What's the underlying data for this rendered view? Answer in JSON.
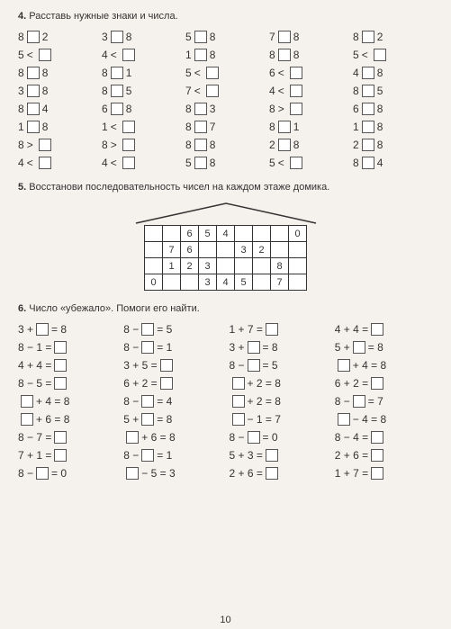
{
  "ex4": {
    "num": "4.",
    "title": "Расставь нужные знаки и числа.",
    "rows": [
      [
        {
          "l": "8",
          "m": "box",
          "r": "2"
        },
        {
          "l": "3",
          "m": "box",
          "r": "8"
        },
        {
          "l": "5",
          "m": "box",
          "r": "8"
        },
        {
          "l": "7",
          "m": "box",
          "r": "8"
        },
        {
          "l": "8",
          "m": "box",
          "r": "2"
        }
      ],
      [
        {
          "l": "5",
          "m": "<",
          "r": "box"
        },
        {
          "l": "4",
          "m": "<",
          "r": "box"
        },
        {
          "l": "1",
          "m": "box",
          "r": "8"
        },
        {
          "l": "8",
          "m": "box",
          "r": "8"
        },
        {
          "l": "5",
          "m": "<",
          "r": "box"
        }
      ],
      [
        {
          "l": "8",
          "m": "box",
          "r": "8"
        },
        {
          "l": "8",
          "m": "box",
          "r": "1"
        },
        {
          "l": "5",
          "m": "<",
          "r": "box"
        },
        {
          "l": "6",
          "m": "<",
          "r": "box"
        },
        {
          "l": "4",
          "m": "box",
          "r": "8"
        }
      ],
      [
        {
          "l": "3",
          "m": "box",
          "r": "8"
        },
        {
          "l": "8",
          "m": "box",
          "r": "5"
        },
        {
          "l": "7",
          "m": "<",
          "r": "box"
        },
        {
          "l": "4",
          "m": "<",
          "r": "box"
        },
        {
          "l": "8",
          "m": "box",
          "r": "5"
        }
      ],
      [
        {
          "l": "8",
          "m": "box",
          "r": "4"
        },
        {
          "l": "6",
          "m": "box",
          "r": "8"
        },
        {
          "l": "8",
          "m": "box",
          "r": "3"
        },
        {
          "l": "8",
          "m": ">",
          "r": "box"
        },
        {
          "l": "6",
          "m": "box",
          "r": "8"
        }
      ],
      [
        {
          "l": "1",
          "m": "box",
          "r": "8"
        },
        {
          "l": "1",
          "m": "<",
          "r": "box"
        },
        {
          "l": "8",
          "m": "box",
          "r": "7"
        },
        {
          "l": "8",
          "m": "box",
          "r": "1"
        },
        {
          "l": "1",
          "m": "box",
          "r": "8"
        }
      ],
      [
        {
          "l": "8",
          "m": ">",
          "r": "box"
        },
        {
          "l": "8",
          "m": ">",
          "r": "box"
        },
        {
          "l": "8",
          "m": "box",
          "r": "8"
        },
        {
          "l": "2",
          "m": "box",
          "r": "8"
        },
        {
          "l": "2",
          "m": "box",
          "r": "8"
        }
      ],
      [
        {
          "l": "4",
          "m": "<",
          "r": "box"
        },
        {
          "l": "4",
          "m": "<",
          "r": "box"
        },
        {
          "l": "5",
          "m": "box",
          "r": "8"
        },
        {
          "l": "5",
          "m": "<",
          "r": "box"
        },
        {
          "l": "8",
          "m": "box",
          "r": "4"
        }
      ]
    ]
  },
  "ex5": {
    "num": "5.",
    "title": "Восстанови последовательность чисел на каждом этаже домика.",
    "table": [
      [
        "",
        "",
        "6",
        "5",
        "4",
        "",
        "",
        "",
        "0"
      ],
      [
        "",
        "7",
        "6",
        "",
        "",
        "3",
        "2",
        "",
        ""
      ],
      [
        "",
        "1",
        "2",
        "3",
        "",
        "",
        "",
        "8",
        ""
      ],
      [
        "0",
        "",
        "",
        "3",
        "4",
        "5",
        "",
        "7",
        ""
      ]
    ]
  },
  "ex6": {
    "num": "6.",
    "title": "Число «убежало». Помоги его найти.",
    "rows": [
      [
        [
          "3 + ",
          "box",
          " = 8"
        ],
        [
          "8 − ",
          "box",
          " = 5"
        ],
        [
          "1 + 7 = ",
          "box",
          ""
        ],
        [
          "4 + 4 = ",
          "box",
          ""
        ]
      ],
      [
        [
          "8 − 1 = ",
          "box",
          ""
        ],
        [
          "8 − ",
          "box",
          " = 1"
        ],
        [
          "3 + ",
          "box",
          " = 8"
        ],
        [
          "5 + ",
          "box",
          " = 8"
        ]
      ],
      [
        [
          "4 + 4 = ",
          "box",
          ""
        ],
        [
          "3 + 5 = ",
          "box",
          ""
        ],
        [
          "8 − ",
          "box",
          " = 5"
        ],
        [
          "",
          "box",
          " + 4 = 8"
        ]
      ],
      [
        [
          "8 − 5 = ",
          "box",
          ""
        ],
        [
          "6 + 2 = ",
          "box",
          ""
        ],
        [
          "",
          "box",
          " + 2 = 8"
        ],
        [
          "6 + 2 = ",
          "box",
          ""
        ]
      ],
      [
        [
          "",
          "box",
          " + 4 = 8"
        ],
        [
          "8 − ",
          "box",
          " = 4"
        ],
        [
          "",
          "box",
          " + 2 = 8"
        ],
        [
          "8 − ",
          "box",
          " = 7"
        ]
      ],
      [
        [
          "",
          "box",
          " + 6 = 8"
        ],
        [
          "5 + ",
          "box",
          " = 8"
        ],
        [
          "",
          "box",
          " − 1 = 7"
        ],
        [
          "",
          "box",
          " − 4 = 8"
        ]
      ],
      [
        [
          "8 − 7 = ",
          "box",
          ""
        ],
        [
          "",
          "box",
          " + 6 = 8"
        ],
        [
          "8 − ",
          "box",
          " = 0"
        ],
        [
          "8 − 4 = ",
          "box",
          ""
        ]
      ],
      [
        [
          "7 + 1 = ",
          "box",
          ""
        ],
        [
          "8 − ",
          "box",
          " = 1"
        ],
        [
          "5 + 3 = ",
          "box",
          ""
        ],
        [
          "2 + 6 = ",
          "box",
          ""
        ]
      ],
      [
        [
          "8 − ",
          "box",
          " = 0"
        ],
        [
          "",
          "box",
          " − 5 = 3"
        ],
        [
          "2 + 6 = ",
          "box",
          ""
        ],
        [
          "1 + 7 = ",
          "box",
          ""
        ]
      ]
    ]
  },
  "page": "10"
}
